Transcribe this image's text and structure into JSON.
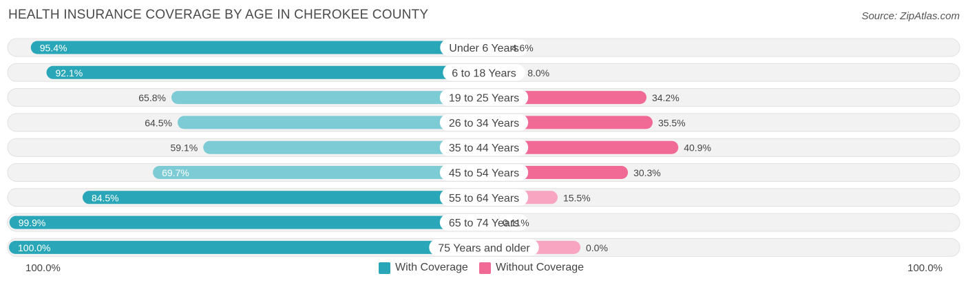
{
  "chart_data": {
    "type": "bar",
    "orientation": "diverging-horizontal",
    "title": "HEALTH INSURANCE COVERAGE BY AGE IN CHEROKEE COUNTY",
    "source": "Source: ZipAtlas.com",
    "categories": [
      "Under 6 Years",
      "6 to 18 Years",
      "19 to 25 Years",
      "26 to 34 Years",
      "35 to 44 Years",
      "45 to 54 Years",
      "55 to 64 Years",
      "65 to 74 Years",
      "75 Years and older"
    ],
    "series": [
      {
        "name": "With Coverage",
        "values": [
          95.4,
          92.1,
          65.8,
          64.5,
          59.1,
          69.7,
          84.5,
          99.9,
          100.0
        ],
        "labels": [
          "95.4%",
          "92.1%",
          "65.8%",
          "64.5%",
          "59.1%",
          "69.7%",
          "84.5%",
          "99.9%",
          "100.0%"
        ]
      },
      {
        "name": "Without Coverage",
        "values": [
          4.6,
          8.0,
          34.2,
          35.5,
          40.9,
          30.3,
          15.5,
          0.11,
          0.0
        ],
        "labels": [
          "4.6%",
          "8.0%",
          "34.2%",
          "35.5%",
          "40.9%",
          "30.3%",
          "15.5%",
          "0.11%",
          "0.0%"
        ]
      }
    ],
    "axis": {
      "left_label": "100.0%",
      "right_label": "100.0%",
      "range": [
        0,
        100
      ]
    },
    "legend": {
      "position": "bottom-center",
      "items": [
        "With Coverage",
        "Without Coverage"
      ]
    }
  },
  "colors": {
    "with_dark": "#29a6b8",
    "with_light": "#7dcbd4",
    "without_dark": "#f06a95",
    "without_light": "#f7a5c0",
    "row_bg": "#f2f2f2",
    "row_border": "#e0e0e0"
  }
}
